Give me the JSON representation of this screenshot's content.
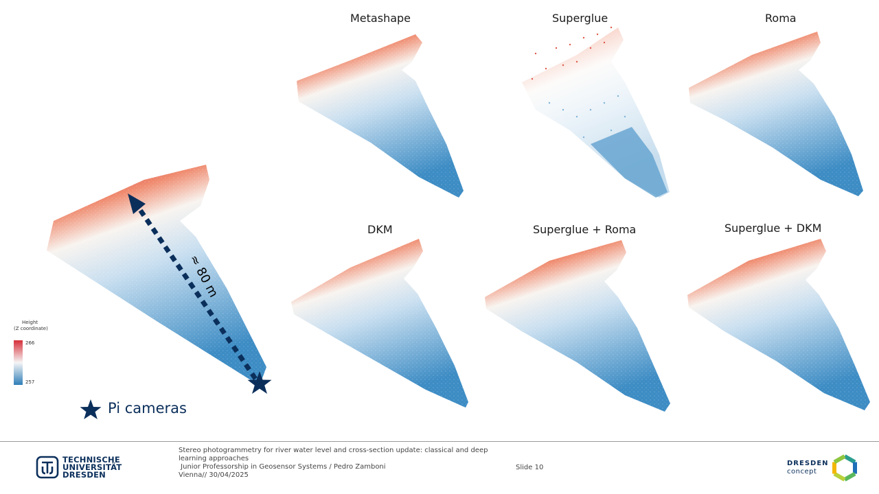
{
  "panels": [
    {
      "title": "Metashape"
    },
    {
      "title": "Superglue"
    },
    {
      "title": "Roma"
    },
    {
      "title": "DKM"
    },
    {
      "title": "Superglue + Roma"
    },
    {
      "title": "Superglue + DKM"
    }
  ],
  "legend": {
    "title_line1": "Height",
    "title_line2": "(Z coordinate)",
    "max": "266",
    "min": "257",
    "color_high": "#d6303a",
    "color_mid": "#f5f5f5",
    "color_low": "#2f7eb8"
  },
  "overview": {
    "distance_label": "≈ 80 m",
    "camera_label": "Pi cameras",
    "arrow_color": "#0b2f5b"
  },
  "footer": {
    "title_line1": "Stereo photogrammetry for river water level and cross-section update: classical and deep",
    "title_line2": "learning approaches",
    "subtitle": " Junior Professorship in Geosensor Systems / Pedro Zamboni",
    "place_date": "Vienna// 30/04/2025",
    "slide": "Slide 10",
    "tud_line1": "TECHNISCHE",
    "tud_line2": "UNIVERSITÄT",
    "tud_line3": "DRESDEN",
    "dc_line1": "DRESDEN",
    "dc_line2": "concept"
  }
}
